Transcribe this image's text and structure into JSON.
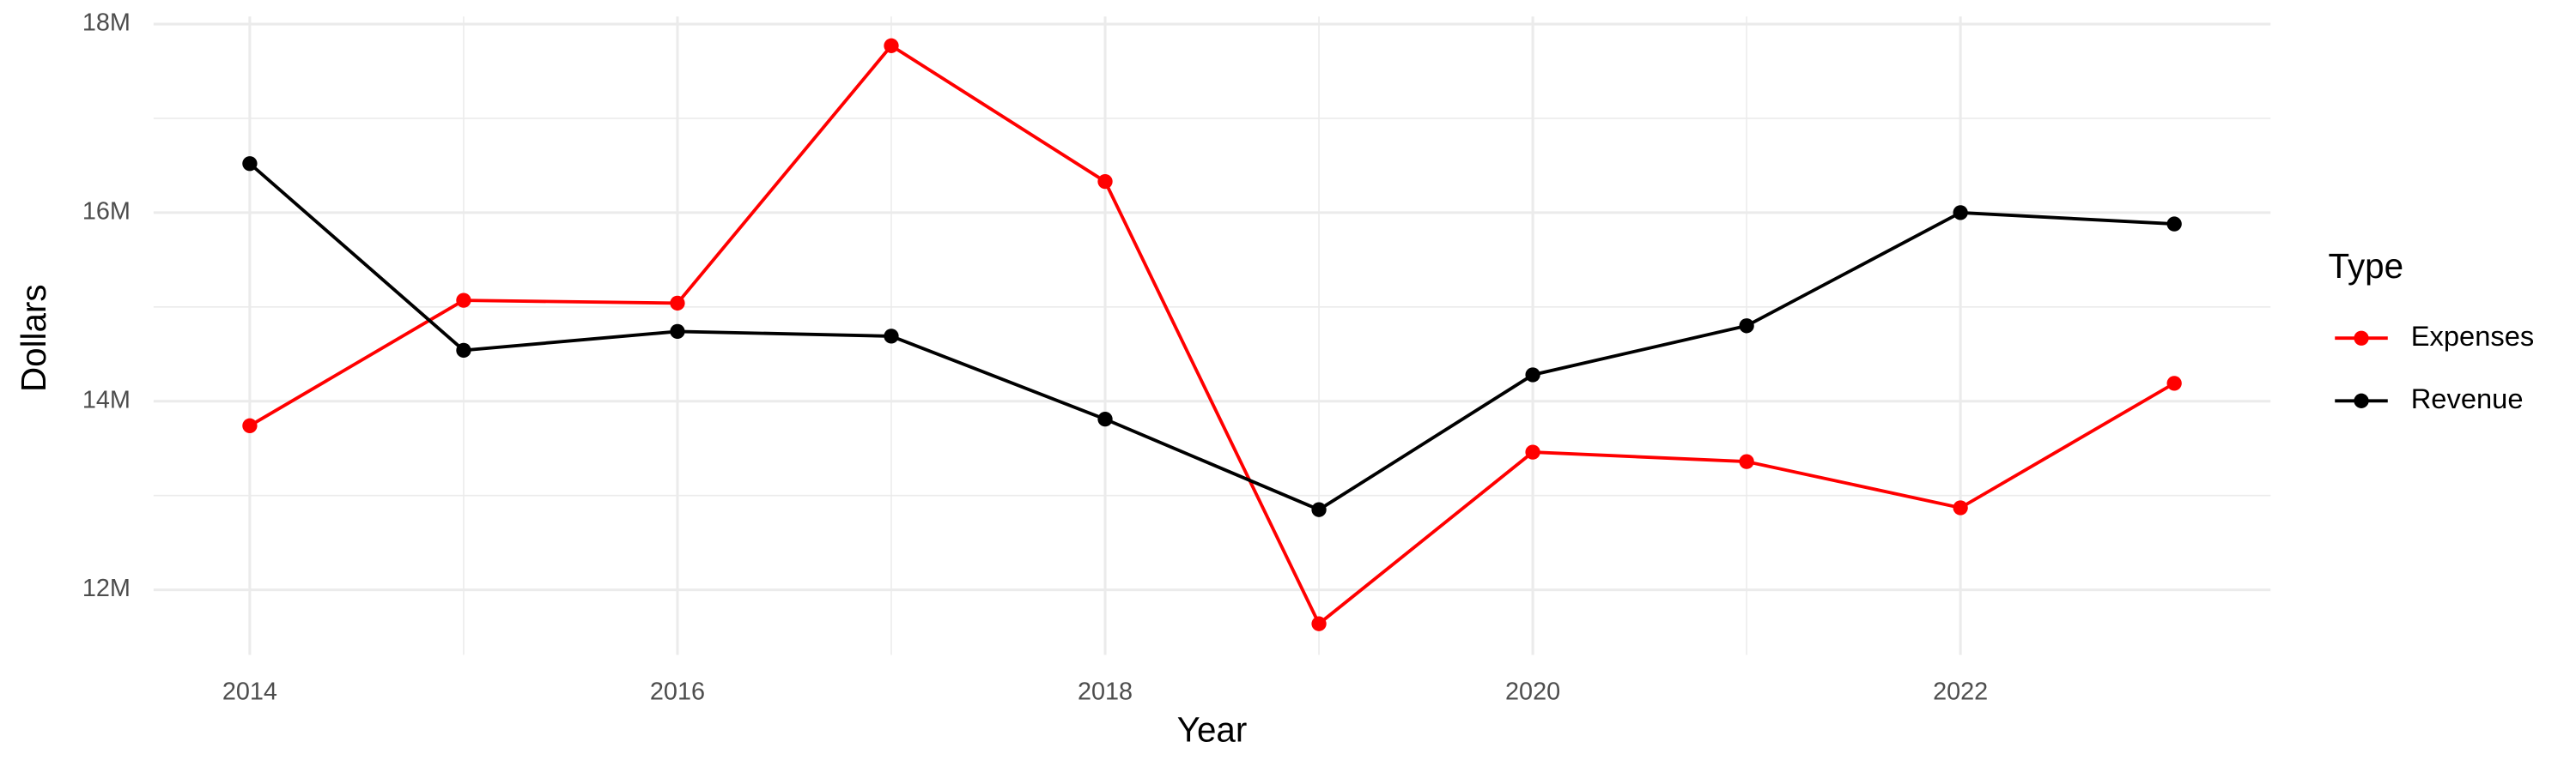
{
  "chart_data": {
    "type": "line",
    "x_label": "Year",
    "y_label": "Dollars",
    "legend_title": "Type",
    "legend": "right",
    "grid": true,
    "x": [
      2014,
      2015,
      2016,
      2017,
      2018,
      2019,
      2020,
      2021,
      2022,
      2023
    ],
    "series": [
      {
        "name": "Expenses",
        "color": "#ff0000",
        "values": [
          13740000,
          15070000,
          15040000,
          17770000,
          16330000,
          11640000,
          13460000,
          13360000,
          12870000,
          14190000
        ]
      },
      {
        "name": "Revenue",
        "color": "#000000",
        "values": [
          16520000,
          14540000,
          14740000,
          14690000,
          13810000,
          12850000,
          14280000,
          14800000,
          16000000,
          15880000
        ]
      }
    ],
    "xlim": [
      2013.55,
      2023.45
    ],
    "xticks": [
      2014,
      2016,
      2018,
      2020,
      2022
    ],
    "ylim": [
      11310000,
      18080000
    ],
    "yticks": [
      {
        "value": 12000000,
        "label": "12M"
      },
      {
        "value": 14000000,
        "label": "14M"
      },
      {
        "value": 16000000,
        "label": "16M"
      },
      {
        "value": 18000000,
        "label": "18M"
      }
    ]
  }
}
